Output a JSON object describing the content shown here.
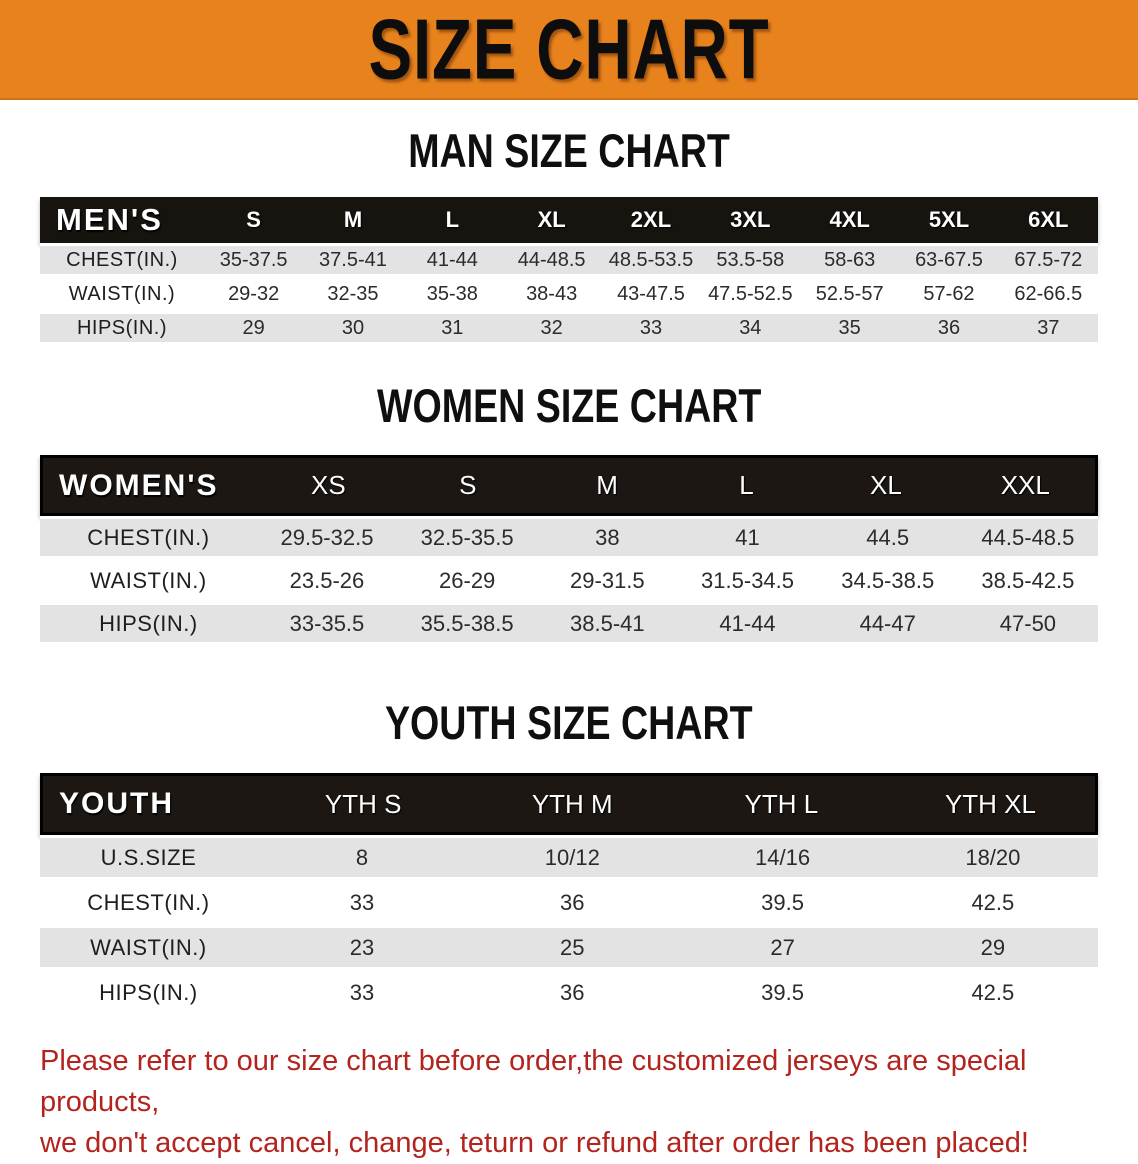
{
  "banner": {
    "title": "SIZE CHART",
    "bg_color": "#e8821d"
  },
  "men": {
    "heading": "MAN SIZE CHART",
    "group_label": "MEN'S",
    "sizes": [
      "S",
      "M",
      "L",
      "XL",
      "2XL",
      "3XL",
      "4XL",
      "5XL",
      "6XL"
    ],
    "rows": [
      {
        "label": "CHEST(IN.)",
        "values": [
          "35-37.5",
          "37.5-41",
          "41-44",
          "44-48.5",
          "48.5-53.5",
          "53.5-58",
          "58-63",
          "63-67.5",
          "67.5-72"
        ]
      },
      {
        "label": "WAIST(IN.)",
        "values": [
          "29-32",
          "32-35",
          "35-38",
          "38-43",
          "43-47.5",
          "47.5-52.5",
          "52.5-57",
          "57-62",
          "62-66.5"
        ]
      },
      {
        "label": "HIPS(IN.)",
        "values": [
          "29",
          "30",
          "31",
          "32",
          "33",
          "34",
          "35",
          "36",
          "37"
        ]
      }
    ]
  },
  "women": {
    "heading": "WOMEN SIZE CHART",
    "group_label": "WOMEN'S",
    "sizes": [
      "XS",
      "S",
      "M",
      "L",
      "XL",
      "XXL"
    ],
    "rows": [
      {
        "label": "CHEST(IN.)",
        "values": [
          "29.5-32.5",
          "32.5-35.5",
          "38",
          "41",
          "44.5",
          "44.5-48.5"
        ]
      },
      {
        "label": "WAIST(IN.)",
        "values": [
          "23.5-26",
          "26-29",
          "29-31.5",
          "31.5-34.5",
          "34.5-38.5",
          "38.5-42.5"
        ]
      },
      {
        "label": "HIPS(IN.)",
        "values": [
          "33-35.5",
          "35.5-38.5",
          "38.5-41",
          "41-44",
          "44-47",
          "47-50"
        ]
      }
    ]
  },
  "youth": {
    "heading": "YOUTH SIZE CHART",
    "group_label": "YOUTH",
    "sizes": [
      "YTH S",
      "YTH M",
      "YTH L",
      "YTH XL"
    ],
    "rows": [
      {
        "label": "U.S.SIZE",
        "values": [
          "8",
          "10/12",
          "14/16",
          "18/20"
        ]
      },
      {
        "label": "CHEST(IN.)",
        "values": [
          "33",
          "36",
          "39.5",
          "42.5"
        ]
      },
      {
        "label": "WAIST(IN.)",
        "values": [
          "23",
          "25",
          "27",
          "29"
        ]
      },
      {
        "label": "HIPS(IN.)",
        "values": [
          "33",
          "36",
          "39.5",
          "42.5"
        ]
      }
    ]
  },
  "notice": {
    "color": "#b3241f",
    "line1": "Please refer to our size chart before order,the customized jerseys are special products,",
    "line2": "we don't accept cancel, change, teturn or refund after order has been placed!"
  }
}
